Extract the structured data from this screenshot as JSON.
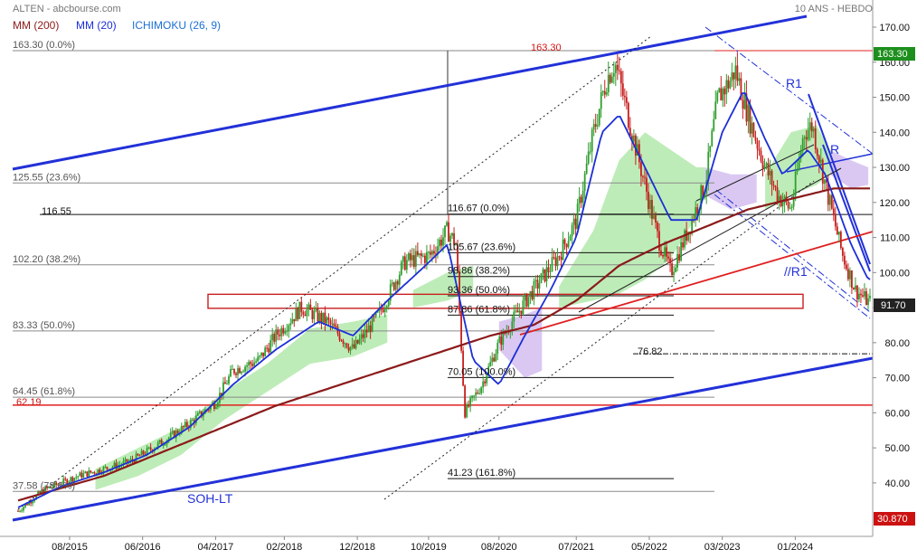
{
  "header": {
    "symbol_source": "ALTEN - abcbourse.com",
    "period": "10 ANS - HEBDO"
  },
  "legend": [
    {
      "label": "MM (200)",
      "color": "#8b1a1a"
    },
    {
      "label": "MM (20)",
      "color": "#1c2fd6"
    },
    {
      "label": "ICHIMOKU (26, 9)",
      "color": "#1c6fd6"
    }
  ],
  "colors": {
    "up_candle": "#2e9e2e",
    "down_candle": "#c81e1e",
    "trend_line": "#2231d8",
    "mm200": "#8b1a1a",
    "mm20": "#1c2fd6",
    "red_line": "#e02020",
    "cloud_bull": "#a8e6a0",
    "cloud_bear": "#cdb6ee",
    "badge_dark": "#222222",
    "badge_green": "#1e8f1e",
    "badge_red": "#cc1111"
  },
  "chart_data": {
    "type": "candlestick",
    "title": "ALTEN - abcbourse.com",
    "timeframe": "10 ANS - HEBDO",
    "x_ticks": [
      "08/2015",
      "06/2016",
      "04/2017",
      "02/2018",
      "12/2018",
      "10/2019",
      "08/2020",
      "07/2021",
      "05/2022",
      "03/2023",
      "01/2024"
    ],
    "y_ticks": [
      40,
      50,
      60,
      70,
      80,
      90,
      100,
      110,
      120,
      130,
      140,
      150,
      160,
      170
    ],
    "y_tick_labels": [
      "40.00",
      "50.00",
      "60.00",
      "70.00",
      "80.00",
      "90.00",
      "100.00",
      "110.00",
      "120.00",
      "130.00",
      "140.00",
      "150.00",
      "160.00",
      "170.00"
    ],
    "ylim": [
      30.87,
      170
    ],
    "last_price": 91.7,
    "last_price_label": "91.70",
    "axis_high_label": "163.30",
    "axis_low_label": "30.870",
    "grid": false,
    "close_anchors": [
      [
        2015.0,
        32
      ],
      [
        2015.3,
        38
      ],
      [
        2015.7,
        42
      ],
      [
        2016.0,
        44
      ],
      [
        2016.3,
        46
      ],
      [
        2016.7,
        52
      ],
      [
        2017.0,
        57
      ],
      [
        2017.3,
        63
      ],
      [
        2017.5,
        72
      ],
      [
        2017.8,
        75
      ],
      [
        2018.0,
        82
      ],
      [
        2018.3,
        90
      ],
      [
        2018.6,
        86
      ],
      [
        2018.9,
        78
      ],
      [
        2019.2,
        88
      ],
      [
        2019.5,
        103
      ],
      [
        2019.8,
        105
      ],
      [
        2020.0,
        112
      ],
      [
        2020.1,
        108
      ],
      [
        2020.2,
        60
      ],
      [
        2020.4,
        68
      ],
      [
        2020.6,
        80
      ],
      [
        2020.8,
        88
      ],
      [
        2021.0,
        95
      ],
      [
        2021.3,
        105
      ],
      [
        2021.5,
        115
      ],
      [
        2021.7,
        140
      ],
      [
        2021.85,
        155
      ],
      [
        2021.95,
        160
      ],
      [
        2022.1,
        145
      ],
      [
        2022.3,
        125
      ],
      [
        2022.45,
        110
      ],
      [
        2022.6,
        100
      ],
      [
        2022.8,
        112
      ],
      [
        2023.0,
        125
      ],
      [
        2023.15,
        150
      ],
      [
        2023.3,
        155
      ],
      [
        2023.35,
        158
      ],
      [
        2023.5,
        145
      ],
      [
        2023.7,
        130
      ],
      [
        2023.85,
        122
      ],
      [
        2024.0,
        118
      ],
      [
        2024.15,
        140
      ],
      [
        2024.25,
        142
      ],
      [
        2024.4,
        125
      ],
      [
        2024.6,
        105
      ],
      [
        2024.75,
        95
      ],
      [
        2024.9,
        91.7
      ]
    ],
    "mm200_anchors": [
      [
        2015.0,
        35
      ],
      [
        2016.0,
        42
      ],
      [
        2017.0,
        52
      ],
      [
        2018.0,
        62
      ],
      [
        2019.0,
        70
      ],
      [
        2020.0,
        78
      ],
      [
        2020.5,
        82
      ],
      [
        2021.0,
        85
      ],
      [
        2021.5,
        92
      ],
      [
        2022.0,
        102
      ],
      [
        2022.5,
        108
      ],
      [
        2023.0,
        113
      ],
      [
        2023.5,
        118
      ],
      [
        2024.0,
        121
      ],
      [
        2024.5,
        124
      ],
      [
        2024.9,
        124
      ]
    ],
    "mm20_anchors": [
      [
        2015.0,
        33
      ],
      [
        2015.5,
        39
      ],
      [
        2016.0,
        43
      ],
      [
        2016.5,
        48
      ],
      [
        2017.0,
        56
      ],
      [
        2017.5,
        68
      ],
      [
        2018.0,
        78
      ],
      [
        2018.5,
        86
      ],
      [
        2018.9,
        82
      ],
      [
        2019.3,
        92
      ],
      [
        2019.7,
        101
      ],
      [
        2020.0,
        108
      ],
      [
        2020.3,
        75
      ],
      [
        2020.6,
        68
      ],
      [
        2020.9,
        82
      ],
      [
        2021.2,
        95
      ],
      [
        2021.5,
        110
      ],
      [
        2021.8,
        140
      ],
      [
        2022.0,
        145
      ],
      [
        2022.3,
        130
      ],
      [
        2022.6,
        115
      ],
      [
        2022.9,
        115
      ],
      [
        2023.2,
        140
      ],
      [
        2023.45,
        152
      ],
      [
        2023.7,
        138
      ],
      [
        2023.9,
        128
      ],
      [
        2024.2,
        135
      ],
      [
        2024.4,
        128
      ],
      [
        2024.7,
        108
      ],
      [
        2024.9,
        98
      ]
    ],
    "fibonacci_long": [
      {
        "label": "163.30",
        "ratio": "(0.0%)",
        "value": 163.3
      },
      {
        "label": "125.55",
        "ratio": "(23.6%)",
        "value": 125.55
      },
      {
        "label": "102.20",
        "ratio": "(38.2%)",
        "value": 102.2
      },
      {
        "label": "83.33",
        "ratio": "(50.0%)",
        "value": 83.33
      },
      {
        "label": "64.45",
        "ratio": "(61.8%)",
        "value": 64.45
      },
      {
        "label": "37.58",
        "ratio": "(78.6%)",
        "value": 37.58
      }
    ],
    "fibonacci_short": [
      {
        "label": "116.67",
        "ratio": "(0.0%)",
        "value": 116.67
      },
      {
        "label": "105.67",
        "ratio": "(23.6%)",
        "value": 105.67
      },
      {
        "label": "98.86",
        "ratio": "(38.2%)",
        "value": 98.86
      },
      {
        "label": "93.36",
        "ratio": "(50.0%)",
        "value": 93.36
      },
      {
        "label": "87.86",
        "ratio": "(61.8%)",
        "value": 87.86
      },
      {
        "label": "70.05",
        "ratio": "(100.0%)",
        "value": 70.05
      },
      {
        "label": "41.23",
        "ratio": "(161.8%)",
        "value": 41.23
      }
    ],
    "horizontal_levels": [
      {
        "label": "116.55",
        "value": 116.55
      },
      {
        "label": "163.30",
        "value": 163.3
      },
      {
        "label": "62.19",
        "value": 62.19
      },
      {
        "label": "76.82",
        "value": 76.82
      }
    ],
    "annotations": [
      "SOH-LT",
      "R1",
      "R",
      "//R1"
    ]
  }
}
